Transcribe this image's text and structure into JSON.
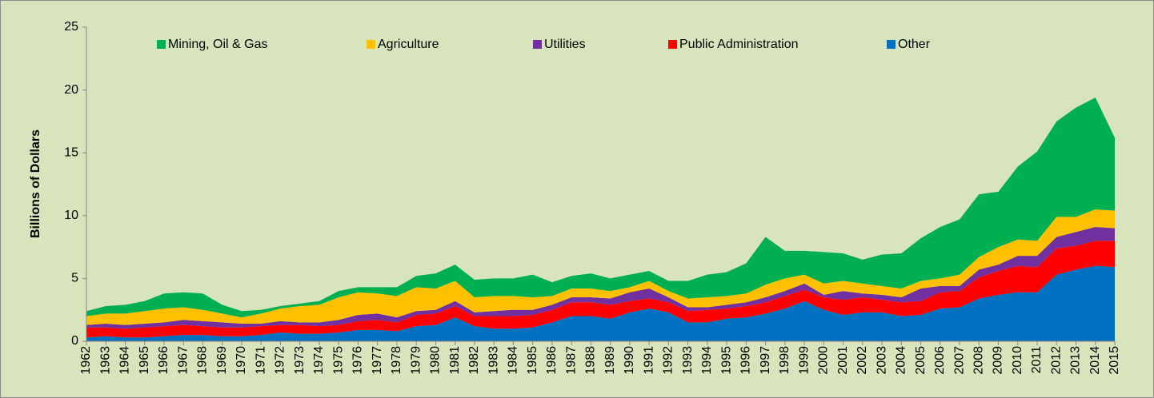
{
  "chart_data": {
    "type": "stacked_area",
    "y_label": "Billions of Dollars",
    "categories": [
      "1962",
      "1963",
      "1964",
      "1965",
      "1966",
      "1967",
      "1968",
      "1969",
      "1970",
      "1971",
      "1972",
      "1973",
      "1974",
      "1975",
      "1976",
      "1977",
      "1978",
      "1979",
      "1980",
      "1981",
      "1982",
      "1983",
      "1984",
      "1985",
      "1986",
      "1987",
      "1988",
      "1989",
      "1990",
      "1991",
      "1992",
      "1993",
      "1994",
      "1995",
      "1996",
      "1997",
      "1998",
      "1999",
      "2000",
      "2001",
      "2002",
      "2003",
      "2004",
      "2005",
      "2006",
      "2007",
      "2008",
      "2009",
      "2010",
      "2011",
      "2012",
      "2013",
      "2014",
      "2015"
    ],
    "series": [
      {
        "name": "Mining, Oil & Gas",
        "color": "#00b050",
        "values": [
          0.4,
          0.6,
          0.7,
          0.8,
          1.2,
          1.2,
          1.3,
          0.7,
          0.5,
          0.3,
          0.2,
          0.2,
          0.3,
          0.5,
          0.4,
          0.5,
          0.7,
          0.9,
          1.2,
          1.3,
          1.4,
          1.4,
          1.4,
          1.8,
          1.1,
          1.0,
          1.2,
          1.0,
          1.0,
          0.8,
          0.8,
          1.4,
          1.8,
          1.9,
          2.4,
          3.8,
          2.2,
          1.9,
          2.5,
          2.2,
          1.9,
          2.5,
          2.8,
          3.4,
          4.1,
          4.4,
          5.0,
          4.4,
          5.8,
          7.1,
          7.6,
          8.7,
          8.9,
          5.8
        ]
      },
      {
        "name": "Agriculture",
        "color": "#ffc000",
        "values": [
          0.7,
          0.8,
          0.9,
          1.0,
          1.1,
          1.0,
          0.9,
          0.7,
          0.5,
          0.8,
          1.0,
          1.3,
          1.4,
          1.8,
          1.8,
          1.6,
          1.7,
          1.9,
          1.7,
          1.6,
          1.2,
          1.2,
          1.1,
          1.0,
          0.7,
          0.7,
          0.7,
          0.6,
          0.4,
          0.6,
          0.5,
          0.7,
          0.8,
          0.7,
          0.7,
          1.0,
          1.0,
          0.7,
          0.9,
          0.8,
          0.8,
          0.7,
          0.7,
          0.6,
          0.6,
          0.9,
          1.0,
          1.4,
          1.3,
          1.2,
          1.6,
          1.2,
          1.4,
          1.4
        ]
      },
      {
        "name": "Utilities",
        "color": "#7030a0",
        "values": [
          0.2,
          0.3,
          0.3,
          0.3,
          0.3,
          0.4,
          0.4,
          0.4,
          0.3,
          0.2,
          0.3,
          0.2,
          0.3,
          0.4,
          0.5,
          0.5,
          0.4,
          0.3,
          0.3,
          0.4,
          0.3,
          0.4,
          0.5,
          0.4,
          0.4,
          0.4,
          0.4,
          0.5,
          0.7,
          0.8,
          0.4,
          0.3,
          0.2,
          0.3,
          0.3,
          0.4,
          0.4,
          0.5,
          0.2,
          0.7,
          0.3,
          0.4,
          0.4,
          1.0,
          0.5,
          0.4,
          0.6,
          0.5,
          0.8,
          0.9,
          0.9,
          1.1,
          1.1,
          1.0
        ]
      },
      {
        "name": "Public Administration",
        "color": "#ff0000",
        "values": [
          0.8,
          0.7,
          0.7,
          0.8,
          0.8,
          0.8,
          0.7,
          0.7,
          0.7,
          0.7,
          0.6,
          0.7,
          0.6,
          0.6,
          0.7,
          0.8,
          0.7,
          0.9,
          0.9,
          0.9,
          0.8,
          1.0,
          1.0,
          1.0,
          1.0,
          1.1,
          1.1,
          1.1,
          0.9,
          0.8,
          0.8,
          0.9,
          1.0,
          0.8,
          0.9,
          0.9,
          1.0,
          0.9,
          1.0,
          1.2,
          1.2,
          1.0,
          1.1,
          1.1,
          1.3,
          1.3,
          1.7,
          1.9,
          2.1,
          2.0,
          2.1,
          1.9,
          2.0,
          2.1
        ]
      },
      {
        "name": "Other",
        "color": "#0070c0",
        "values": [
          0.3,
          0.4,
          0.3,
          0.3,
          0.4,
          0.5,
          0.5,
          0.4,
          0.4,
          0.5,
          0.7,
          0.6,
          0.6,
          0.7,
          0.9,
          0.9,
          0.8,
          1.2,
          1.3,
          1.9,
          1.2,
          1.0,
          1.0,
          1.1,
          1.5,
          2.0,
          2.0,
          1.8,
          2.3,
          2.6,
          2.3,
          1.5,
          1.5,
          1.8,
          1.9,
          2.2,
          2.6,
          3.2,
          2.5,
          2.1,
          2.3,
          2.3,
          2.0,
          2.1,
          2.6,
          2.7,
          3.4,
          3.7,
          3.9,
          3.9,
          5.3,
          5.7,
          6.0,
          5.9
        ]
      }
    ],
    "ylim": [
      0,
      25
    ],
    "yticks": [
      0,
      5,
      10,
      15,
      20,
      25
    ],
    "grid": false,
    "legend": "top"
  }
}
